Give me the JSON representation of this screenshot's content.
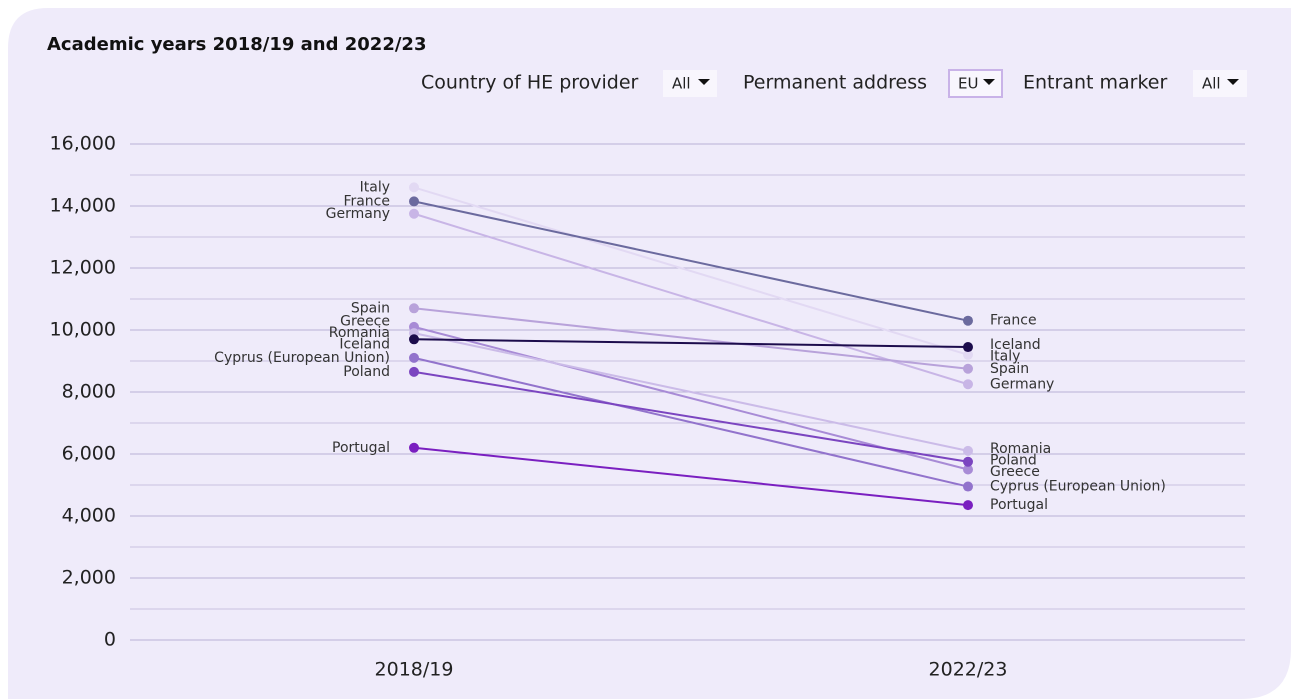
{
  "chart_data": {
    "type": "slope",
    "title": "Academic years 2018/19 and 2022/23",
    "filters": [
      {
        "label": "Country of HE provider",
        "value": "All"
      },
      {
        "label": "Permanent address",
        "value": "EU"
      },
      {
        "label": "Entrant marker",
        "value": "All"
      }
    ],
    "categories": [
      "2018/19",
      "2022/23"
    ],
    "ylim": [
      0,
      16000
    ],
    "yticks": [
      0,
      {
        "value": 2000,
        "label": "2,000"
      },
      {
        "value": 4000,
        "label": "4,000"
      },
      {
        "value": 6000,
        "label": "6,000"
      },
      {
        "value": 8000,
        "label": "8,000"
      },
      {
        "value": 10000,
        "label": "10,000"
      },
      {
        "value": 12000,
        "label": "12,000"
      },
      {
        "value": 14000,
        "label": "14,000"
      },
      {
        "value": 16000,
        "label": "16,000"
      }
    ],
    "minor_yticks": [
      1000,
      3000,
      5000,
      7000,
      9000,
      11000,
      13000,
      15000
    ],
    "grid": true,
    "series": [
      {
        "name": "Italy",
        "color": "#e2d9f3",
        "values": [
          14600,
          9200
        ]
      },
      {
        "name": "France",
        "color": "#6b6a9e",
        "values": [
          14150,
          10300
        ]
      },
      {
        "name": "Germany",
        "color": "#c8b5e6",
        "values": [
          13750,
          8250
        ]
      },
      {
        "name": "Spain",
        "color": "#b8a2da",
        "values": [
          10700,
          8750
        ]
      },
      {
        "name": "Greece",
        "color": "#a88bd6",
        "values": [
          10100,
          5500
        ]
      },
      {
        "name": "Romania",
        "color": "#cbbbe8",
        "values": [
          9900,
          6100
        ]
      },
      {
        "name": "Iceland",
        "color": "#1c0c4c",
        "values": [
          9700,
          9450
        ]
      },
      {
        "name": "Cyprus (European Union)",
        "color": "#9273cc",
        "values": [
          9100,
          4950
        ]
      },
      {
        "name": "Poland",
        "color": "#7b45c0",
        "values": [
          8650,
          5750
        ]
      },
      {
        "name": "Portugal",
        "color": "#7a1fc0",
        "values": [
          6200,
          4350
        ]
      }
    ]
  }
}
